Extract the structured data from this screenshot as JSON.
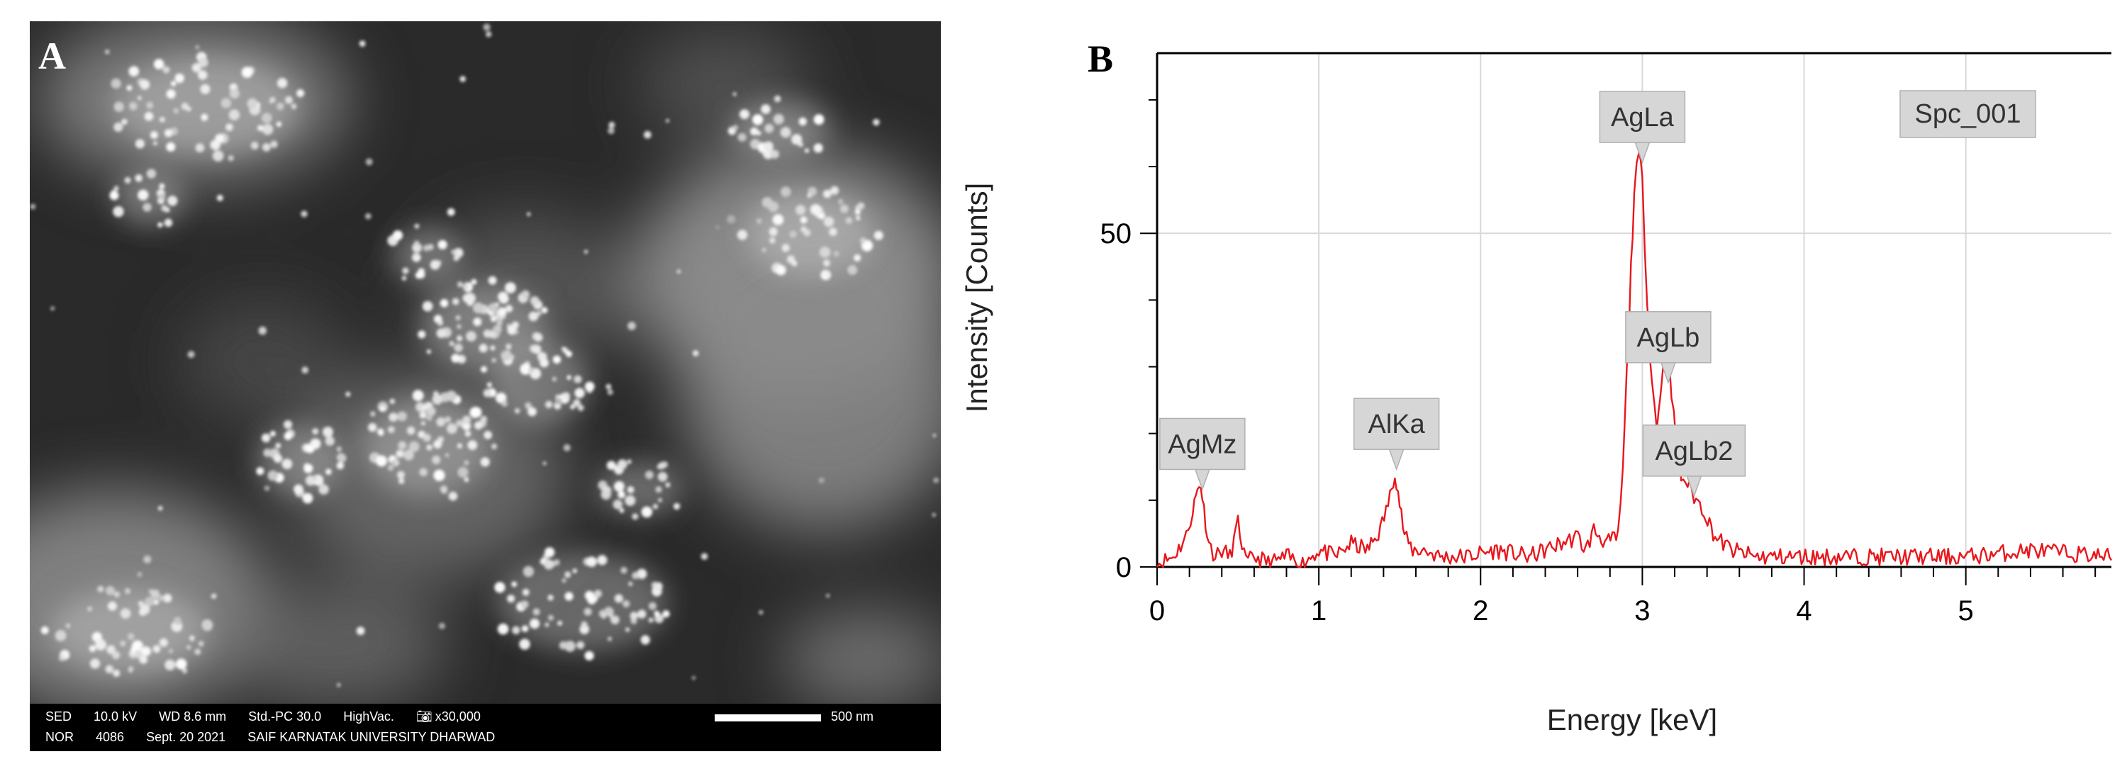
{
  "panel_a": {
    "letter": "A",
    "info_row_1": [
      "SED",
      "10.0 kV",
      "WD 8.6 mm",
      "Std.-PC 30.0",
      "HighVac.",
      "x30,000"
    ],
    "info_row_2": [
      "NOR",
      "4086",
      "Sept. 20 2021",
      "SAIF KARNATAK UNIVERSITY DHARWAD"
    ],
    "scale_label": "500 nm"
  },
  "panel_b": {
    "letter": "B"
  },
  "chart_data": {
    "type": "line",
    "title": "",
    "xlabel": "Energy [keV]",
    "ylabel": "Intensity [Counts]",
    "xlim": [
      0,
      5.9
    ],
    "ylim": [
      0,
      77
    ],
    "xticks": [
      0,
      1,
      2,
      3,
      4,
      5
    ],
    "yticks": [
      0,
      50
    ],
    "grid": true,
    "series_color": "#e8161c",
    "spectrum_label": "Spc_001",
    "series": [
      {
        "x": [
          0.0,
          0.1,
          0.18,
          0.22,
          0.25,
          0.27,
          0.29,
          0.32,
          0.36,
          0.4,
          0.45,
          0.5,
          0.55,
          0.6,
          0.7,
          0.8,
          0.9,
          1.0,
          1.1,
          1.2,
          1.3,
          1.38,
          1.44,
          1.47,
          1.5,
          1.53,
          1.58,
          1.65,
          1.75,
          1.9,
          2.1,
          2.3,
          2.5,
          2.6,
          2.65,
          2.7,
          2.78,
          2.85,
          2.88,
          2.92,
          2.95,
          2.98,
          3.0,
          3.03,
          3.06,
          3.09,
          3.12,
          3.15,
          3.18,
          3.21,
          3.24,
          3.28,
          3.32,
          3.38,
          3.45,
          3.55,
          3.7,
          3.9,
          4.2,
          4.6,
          5.0,
          5.4,
          5.9
        ],
        "y": [
          0,
          1,
          4,
          8,
          11,
          12,
          8,
          3,
          1,
          2,
          1,
          6,
          0,
          1,
          0,
          1,
          0,
          2,
          1,
          3,
          2,
          5,
          10,
          14,
          9,
          4,
          2,
          2,
          1,
          1,
          2,
          1,
          3,
          4,
          2,
          5,
          3,
          4,
          14,
          38,
          56,
          61,
          57,
          40,
          27,
          20,
          28,
          33,
          25,
          18,
          13,
          12,
          10,
          8,
          4,
          2,
          1,
          1,
          1,
          1,
          1,
          2,
          1
        ]
      }
    ],
    "peak_labels": [
      {
        "text": "AgMz",
        "x": 0.28,
        "y": 11
      },
      {
        "text": "AlKa",
        "x": 1.48,
        "y": 14
      },
      {
        "text": "AgLa",
        "x": 3.0,
        "y": 60
      },
      {
        "text": "AgLb",
        "x": 3.16,
        "y": 27
      },
      {
        "text": "AgLb2",
        "x": 3.32,
        "y": 10
      }
    ],
    "tick_color": "#000000",
    "grid_color": "#d9d9d9"
  }
}
